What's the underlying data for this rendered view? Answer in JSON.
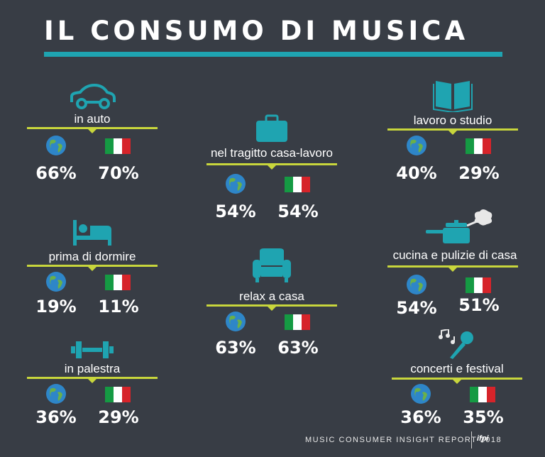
{
  "title": "IL CONSUMO DI MUSICA",
  "footer": {
    "text": "MUSIC CONSUMER INSIGHT REPORT 2018",
    "logo": "ifpi"
  },
  "colors": {
    "background": "#383d45",
    "accent": "#1fa4b1",
    "rule": "#c8d63c",
    "flag_green": "#159a43",
    "flag_white": "#ffffff",
    "flag_red": "#d6242a"
  },
  "activities": [
    {
      "key": "auto",
      "icon": "car-icon",
      "label": "in auto",
      "world": "66%",
      "italy": "70%"
    },
    {
      "key": "commute",
      "icon": "briefcase-icon",
      "label": "nel tragitto casa-lavoro",
      "world": "54%",
      "italy": "54%"
    },
    {
      "key": "study",
      "icon": "book-icon",
      "label": "lavoro o studio",
      "world": "40%",
      "italy": "29%"
    },
    {
      "key": "sleep",
      "icon": "bed-icon",
      "label": "prima di dormire",
      "world": "19%",
      "italy": "11%"
    },
    {
      "key": "relax",
      "icon": "armchair-icon",
      "label": "relax a casa",
      "world": "63%",
      "italy": "63%"
    },
    {
      "key": "cooking",
      "icon": "cooking-pot-icon",
      "label": "cucina e pulizie di casa",
      "world": "54%",
      "italy": "51%"
    },
    {
      "key": "gym",
      "icon": "dumbbell-icon",
      "label": "in palestra",
      "world": "36%",
      "italy": "29%"
    },
    {
      "key": "concerts",
      "icon": "microphone-icon",
      "label": "concerti e festival",
      "world": "36%",
      "italy": "35%"
    }
  ]
}
